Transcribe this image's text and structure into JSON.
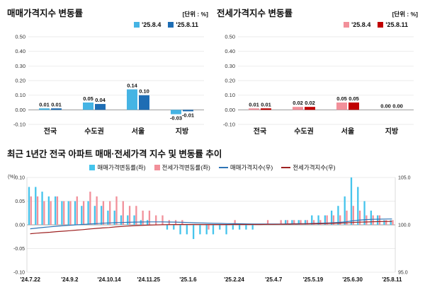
{
  "sales_panel": {
    "title": "매매가격지수 변동률",
    "unit": "[단위 : %]",
    "legend": [
      {
        "label": "'25.8.4",
        "color": "#45b4e4"
      },
      {
        "label": "'25.8.11",
        "color": "#1e6db4"
      }
    ]
  },
  "jeonse_panel": {
    "title": "전세가격지수 변동률",
    "unit": "[단위 : %]",
    "legend": [
      {
        "label": "'25.8.4",
        "color": "#f2909a"
      },
      {
        "label": "'25.8.11",
        "color": "#c00000"
      }
    ]
  },
  "trend": {
    "title": "최근 1년간 전국 아파트 매매·전세가격 지수 및 변동률 추이",
    "left_axis_label": "(%)",
    "legend": [
      {
        "label": "매매가격변동률(좌)",
        "color": "#45c4ec",
        "type": "bar"
      },
      {
        "label": "전세가격변동률(좌)",
        "color": "#f2909a",
        "type": "bar"
      },
      {
        "label": "매매가격지수(우)",
        "color": "#2e75b6",
        "type": "line"
      },
      {
        "label": "전세가격지수(우)",
        "color": "#9e2222",
        "type": "line"
      }
    ]
  },
  "chart_data": [
    {
      "id": "sales-bar",
      "type": "bar",
      "title": "매매가격지수 변동률",
      "categories": [
        "전국",
        "수도권",
        "서울",
        "지방"
      ],
      "series": [
        {
          "name": "'25.8.4",
          "color": "#45b4e4",
          "values": [
            0.01,
            0.05,
            0.14,
            -0.03
          ]
        },
        {
          "name": "'25.8.11",
          "color": "#1e6db4",
          "values": [
            0.01,
            0.04,
            0.1,
            -0.01
          ]
        }
      ],
      "ylim": [
        -0.1,
        0.5
      ],
      "ytick_step": 0.1,
      "unit": "%",
      "grid": true,
      "legend_position": "top-right"
    },
    {
      "id": "jeonse-bar",
      "type": "bar",
      "title": "전세가격지수 변동률",
      "categories": [
        "전국",
        "수도권",
        "서울",
        "지방"
      ],
      "series": [
        {
          "name": "'25.8.4",
          "color": "#f2909a",
          "values": [
            0.01,
            0.02,
            0.05,
            0.0
          ]
        },
        {
          "name": "'25.8.11",
          "color": "#c00000",
          "values": [
            0.01,
            0.02,
            0.05,
            0.0
          ]
        }
      ],
      "ylim": [
        -0.1,
        0.5
      ],
      "ytick_step": 0.1,
      "unit": "%",
      "grid": true,
      "legend_position": "top-right"
    },
    {
      "id": "trend-combo",
      "type": "combo",
      "title": "최근 1년간 전국 아파트 매매·전세가격 지수 및 변동률 추이",
      "weeks": 56,
      "x_labels": [
        "'24.7.22",
        "'24.9.2",
        "'24.10.14",
        "'24.11.25",
        "'25.1.6",
        "'25.2.24",
        "'25.4.7",
        "'25.5.19",
        "'25.6.30",
        "'25.8.11"
      ],
      "x_label_positions": [
        0,
        6,
        12,
        18,
        24,
        31,
        37,
        43,
        49,
        55
      ],
      "left_axis_label": "(%)",
      "left_ylim": [
        -0.1,
        0.1
      ],
      "left_yticks": [
        0.1,
        0.05,
        0.0,
        -0.05,
        -0.1
      ],
      "right_ylim": [
        95.0,
        105.0
      ],
      "right_yticks": [
        105.0,
        100.0,
        95.0
      ],
      "bar_series": [
        {
          "name": "매매가격변동률(좌)",
          "axis": "left",
          "color": "#45c4ec",
          "values": [
            0.08,
            0.08,
            0.07,
            0.06,
            0.06,
            0.05,
            0.05,
            0.05,
            0.04,
            0.05,
            0.04,
            0.04,
            0.03,
            0.03,
            0.02,
            0.02,
            0.02,
            0.01,
            0.01,
            0.0,
            0.0,
            -0.01,
            -0.01,
            -0.02,
            -0.02,
            -0.03,
            -0.02,
            -0.02,
            -0.02,
            -0.01,
            -0.02,
            -0.01,
            -0.01,
            -0.01,
            -0.01,
            0.0,
            0.0,
            0.0,
            0.0,
            0.01,
            0.01,
            0.01,
            0.01,
            0.02,
            0.02,
            0.02,
            0.03,
            0.04,
            0.06,
            0.1,
            0.08,
            0.05,
            0.03,
            0.02,
            0.01,
            0.01
          ]
        },
        {
          "name": "전세가격변동률(좌)",
          "axis": "left",
          "color": "#f2909a",
          "values": [
            0.06,
            0.06,
            0.05,
            0.05,
            0.06,
            0.05,
            0.05,
            0.06,
            0.05,
            0.07,
            0.06,
            0.05,
            0.05,
            0.06,
            0.05,
            0.04,
            0.04,
            0.03,
            0.03,
            0.02,
            0.02,
            0.01,
            0.01,
            0.01,
            0.0,
            0.0,
            0.0,
            -0.01,
            0.0,
            0.0,
            0.0,
            0.01,
            0.0,
            0.0,
            0.0,
            0.0,
            0.01,
            0.0,
            0.01,
            0.01,
            0.01,
            0.01,
            0.01,
            0.01,
            0.01,
            0.02,
            0.02,
            0.02,
            0.03,
            0.04,
            0.03,
            0.02,
            0.02,
            0.02,
            0.01,
            0.01
          ]
        }
      ],
      "line_series": [
        {
          "name": "매매가격지수(우)",
          "axis": "right",
          "color": "#2e75b6",
          "values": [
            99.58,
            99.66,
            99.73,
            99.79,
            99.85,
            99.9,
            99.95,
            100.0,
            100.04,
            100.09,
            100.13,
            100.17,
            100.2,
            100.23,
            100.25,
            100.27,
            100.29,
            100.3,
            100.31,
            100.31,
            100.31,
            100.3,
            100.29,
            100.27,
            100.25,
            100.22,
            100.2,
            100.18,
            100.16,
            100.15,
            100.13,
            100.12,
            100.11,
            100.1,
            100.09,
            100.09,
            100.09,
            100.09,
            100.09,
            100.1,
            100.11,
            100.12,
            100.13,
            100.15,
            100.17,
            100.19,
            100.22,
            100.26,
            100.32,
            100.42,
            100.5,
            100.55,
            100.58,
            100.6,
            100.61,
            100.62
          ]
        },
        {
          "name": "전세가격지수(우)",
          "axis": "right",
          "color": "#9e2222",
          "values": [
            99.06,
            99.12,
            99.17,
            99.22,
            99.28,
            99.33,
            99.38,
            99.44,
            99.49,
            99.56,
            99.62,
            99.67,
            99.72,
            99.78,
            99.83,
            99.87,
            99.91,
            99.94,
            99.97,
            99.99,
            100.01,
            100.02,
            100.03,
            100.04,
            100.04,
            100.04,
            100.04,
            100.03,
            100.03,
            100.03,
            100.03,
            100.04,
            100.04,
            100.04,
            100.04,
            100.04,
            100.05,
            100.05,
            100.06,
            100.07,
            100.08,
            100.09,
            100.1,
            100.11,
            100.12,
            100.14,
            100.16,
            100.18,
            100.21,
            100.25,
            100.28,
            100.3,
            100.32,
            100.34,
            100.35,
            100.36
          ]
        }
      ]
    }
  ]
}
